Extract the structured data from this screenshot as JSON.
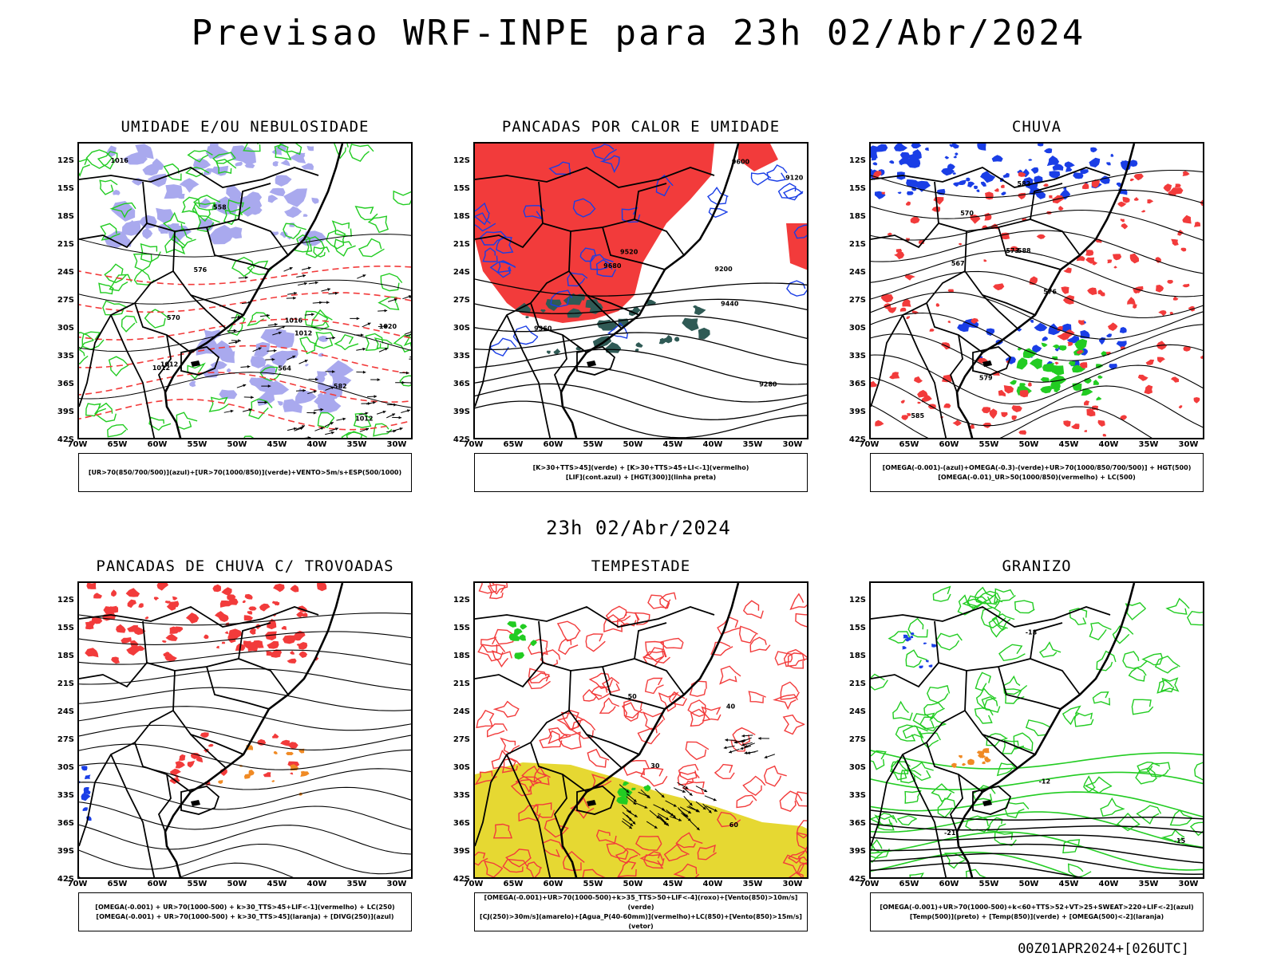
{
  "title": "Previsao WRF-INPE  para 23h 02/Abr/2024",
  "mid_title": "23h 02/Abr/2024",
  "footer": "00Z01APR2024+[026UTC]",
  "y_ticks": [
    "12S",
    "15S",
    "18S",
    "21S",
    "24S",
    "27S",
    "30S",
    "33S",
    "36S",
    "39S",
    "42S"
  ],
  "x_ticks": [
    "70W",
    "65W",
    "60W",
    "55W",
    "50W",
    "45W",
    "40W",
    "35W",
    "30W"
  ],
  "colors": {
    "red": "#f23b3b",
    "green": "#22cc22",
    "blue": "#1a3ee6",
    "lavender": "#a9a9ee",
    "yellow": "#e6d832",
    "dark_teal": "#2f5a55",
    "orange": "#f08a24",
    "black": "#000000"
  },
  "panels": [
    {
      "id": "umidade",
      "title": "UMIDADE E/OU NEBULOSIDADE",
      "legend": [
        "[UR>70(850/700/500)](azul)+[UR>70(1000/850)](verde)+VENTO>5m/s+ESP(500/1000)"
      ],
      "labels": [
        "1012",
        "1012",
        "1012",
        "1012",
        "1016",
        "1016",
        "1020",
        "576",
        "582",
        "570",
        "564",
        "558"
      ]
    },
    {
      "id": "pancadas-calor",
      "title": "PANCADAS POR CALOR E UMIDADE",
      "legend": [
        "[K>30+TTS>45](verde) + [K>30+TTS>45+LI<-1](vermelho)",
        "[LIF](cont.azul) + [HGT(300)](linha preta)"
      ],
      "labels": [
        "9680",
        "9600",
        "9520",
        "9440",
        "9360",
        "9280",
        "9200",
        "9120"
      ]
    },
    {
      "id": "chuva",
      "title": "CHUVA",
      "legend": [
        "[OMEGA(-0.001)-(azul)+OMEGA(-0.3)-(verde)+UR>70(1000/850/700/500)] + HGT(500)",
        "[OMEGA(-0.01)_UR>50(1000/850)(vermelho) + LC(500)"
      ],
      "labels": [
        "588",
        "585",
        "582",
        "579",
        "576",
        "573",
        "570",
        "567"
      ]
    },
    {
      "id": "pancadas-trovoadas",
      "title": "PANCADAS DE CHUVA C/ TROVOADAS",
      "legend": [
        "[OMEGA(-0.001) + UR>70(1000-500) + k>30_TTS>45+LIF<-1](vermelho) + LC(250)",
        "[OMEGA(-0.001) + UR>70(1000-500) + k>30_TTS>45](laranja) + [DIVG(250)](azul)"
      ],
      "labels": []
    },
    {
      "id": "tempestade",
      "title": "TEMPESTADE",
      "legend": [
        "[OMEGA(-0.001)+UR>70(1000-500)+k>35_TTS>50+LIF<-4](roxo)+[Vento(850)>10m/s](verde)",
        "[CJ(250)>30m/s](amarelo)+[Agua_P(40-60mm)](vermelho)+LC(850)+[Vento(850)>15m/s](vetor)"
      ],
      "labels": [
        "50",
        "40",
        "30",
        "60"
      ]
    },
    {
      "id": "granizo",
      "title": "GRANIZO",
      "legend": [
        "[OMEGA(-0.001)+UR>70(1000-500)+k<60+TTS>52+VT>25+SWEAT>220+LIF<-2](azul)",
        "[Temp(500)](preto) + [Temp(850)](verde) + [OMEGA(500)<-2](laranja)"
      ],
      "labels": [
        "-12",
        "-15",
        "-18",
        "-21"
      ]
    }
  ]
}
